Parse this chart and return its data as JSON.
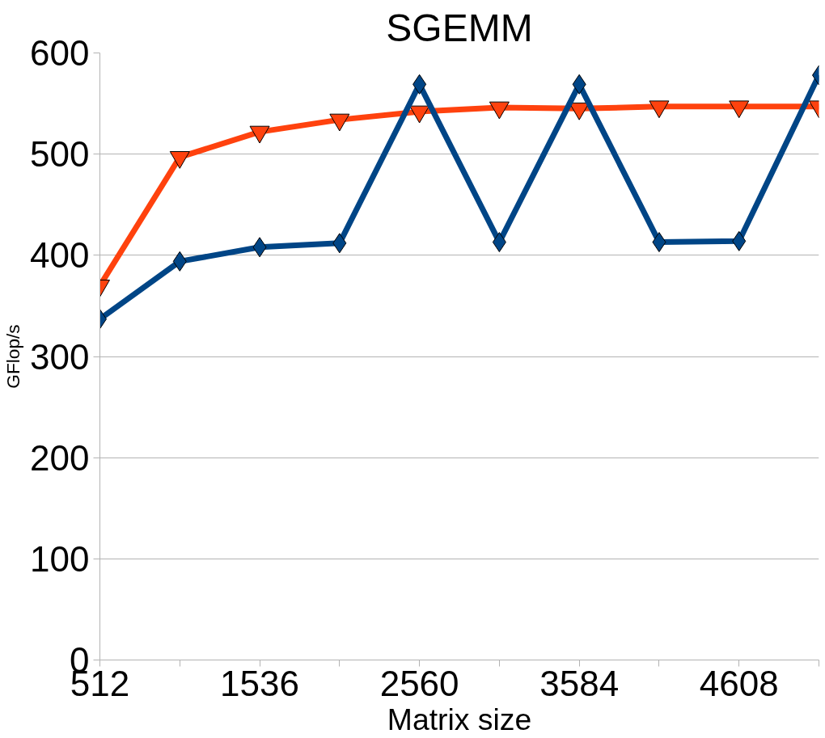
{
  "chart_data": {
    "type": "line",
    "title": "SGEMM",
    "xlabel": "Matrix size",
    "ylabel": "GFlop/s",
    "x": [
      512,
      1024,
      1536,
      2048,
      2560,
      3072,
      3584,
      4096,
      4608,
      5120
    ],
    "series": [
      {
        "color": "#ff420e",
        "marker": "triangle",
        "values": [
          370,
          497,
          522,
          534,
          542,
          546,
          545,
          547,
          547,
          547
        ]
      },
      {
        "color": "#004586",
        "marker": "diamond",
        "values": [
          337,
          394,
          408,
          412,
          569,
          413,
          569,
          413,
          414,
          578
        ]
      }
    ],
    "xlim": [
      512,
      5120
    ],
    "xticks": [
      512,
      {
        "value": 1024,
        "label": null
      },
      1536,
      {
        "value": 2048,
        "label": null
      },
      2560,
      {
        "value": 3072,
        "label": null
      },
      3584,
      {
        "value": 4096,
        "label": null
      },
      4608,
      {
        "value": 5120,
        "label": null
      }
    ],
    "ylim": [
      0,
      600
    ],
    "yticks": [
      0,
      100,
      200,
      300,
      400,
      500,
      600
    ],
    "grid": "y",
    "line_style": "solid"
  }
}
